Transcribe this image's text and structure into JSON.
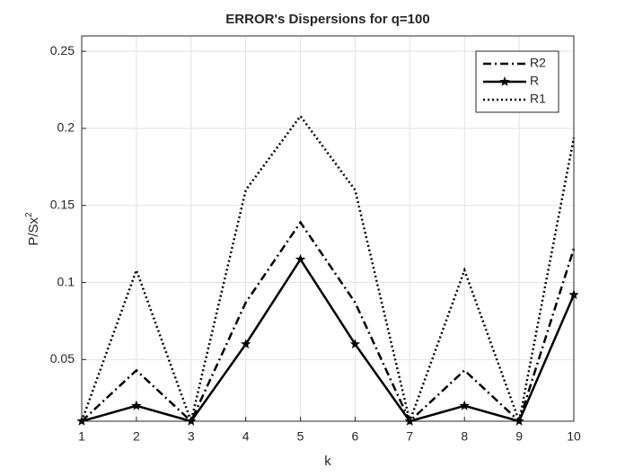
{
  "chart_data": {
    "type": "line",
    "title": "ERROR's Dispersions for q=100",
    "xlabel": "k",
    "ylabel": {
      "base": "P/Sx",
      "superscript": "2"
    },
    "x": [
      1,
      2,
      3,
      4,
      5,
      6,
      7,
      8,
      9,
      10
    ],
    "series": [
      {
        "name": "R2",
        "color": "#000000",
        "dash": "dashdot",
        "marker": "none",
        "values": [
          0.01,
          0.043,
          0.01,
          0.087,
          0.139,
          0.087,
          0.01,
          0.043,
          0.01,
          0.122
        ]
      },
      {
        "name": "R",
        "color": "#000000",
        "dash": "solid",
        "marker": "star",
        "values": [
          0.01,
          0.02,
          0.01,
          0.06,
          0.115,
          0.06,
          0.01,
          0.02,
          0.01,
          0.092
        ]
      },
      {
        "name": "R1",
        "color": "#000000",
        "dash": "dotted",
        "marker": "none",
        "values": [
          0.01,
          0.108,
          0.01,
          0.16,
          0.208,
          0.16,
          0.01,
          0.108,
          0.01,
          0.194
        ]
      }
    ],
    "xlim": [
      1,
      10
    ],
    "xticks": [
      1,
      2,
      3,
      4,
      5,
      6,
      7,
      8,
      9,
      10
    ],
    "ylim": [
      0.01,
      0.26
    ],
    "yticks": [
      0.05,
      0.1,
      0.15,
      0.2,
      0.25
    ],
    "grid": true,
    "legend": "top-right"
  }
}
